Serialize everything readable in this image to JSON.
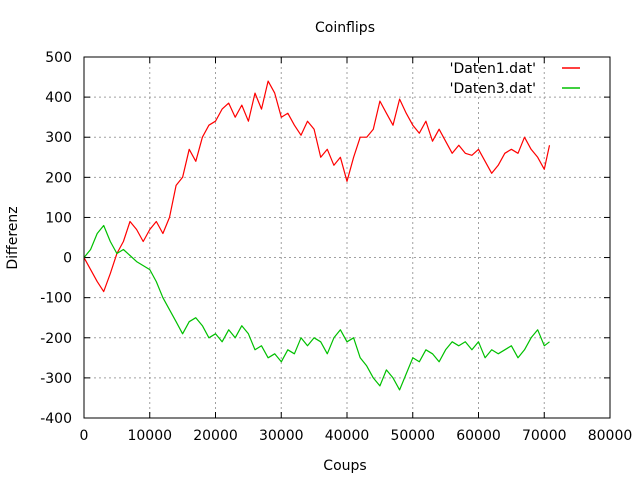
{
  "chart_data": {
    "type": "line",
    "title": "Coinflips",
    "xlabel": "Coups",
    "ylabel": "Differenz",
    "xlim": [
      0,
      80000
    ],
    "ylim": [
      -400,
      500
    ],
    "grid": true,
    "legend_position": "top-right",
    "x_ticks": [
      "0",
      "10000",
      "20000",
      "30000",
      "40000",
      "50000",
      "60000",
      "70000",
      "80000"
    ],
    "y_ticks": [
      "-400",
      "-300",
      "-200",
      "-100",
      "0",
      "100",
      "200",
      "300",
      "400",
      "500"
    ],
    "series": [
      {
        "name": "'Daten1.dat'",
        "color": "#ff0000",
        "x": [
          0,
          1000,
          2000,
          3000,
          4000,
          5000,
          6000,
          7000,
          8000,
          9000,
          10000,
          11000,
          12000,
          13000,
          14000,
          15000,
          16000,
          17000,
          18000,
          19000,
          20000,
          21000,
          22000,
          23000,
          24000,
          25000,
          26000,
          27000,
          28000,
          29000,
          30000,
          31000,
          32000,
          33000,
          34000,
          35000,
          36000,
          37000,
          38000,
          39000,
          40000,
          41000,
          42000,
          43000,
          44000,
          45000,
          46000,
          47000,
          48000,
          49000,
          50000,
          51000,
          52000,
          53000,
          54000,
          55000,
          56000,
          57000,
          58000,
          59000,
          60000,
          61000,
          62000,
          63000,
          64000,
          65000,
          66000,
          67000,
          68000,
          69000,
          70000,
          70800
        ],
        "y": [
          0,
          -30,
          -60,
          -85,
          -40,
          10,
          40,
          90,
          70,
          40,
          70,
          90,
          60,
          100,
          180,
          200,
          270,
          240,
          300,
          330,
          340,
          370,
          385,
          350,
          380,
          340,
          410,
          370,
          440,
          410,
          350,
          360,
          330,
          305,
          340,
          320,
          250,
          270,
          230,
          250,
          190,
          250,
          300,
          300,
          320,
          390,
          360,
          330,
          395,
          360,
          330,
          310,
          340,
          290,
          320,
          290,
          260,
          280,
          260,
          255,
          270,
          240,
          210,
          230,
          260,
          270,
          260,
          300,
          270,
          250,
          220,
          280
        ]
      },
      {
        "name": "'Daten3.dat'",
        "color": "#00c000",
        "x": [
          0,
          1000,
          2000,
          3000,
          4000,
          5000,
          6000,
          7000,
          8000,
          9000,
          10000,
          11000,
          12000,
          13000,
          14000,
          15000,
          16000,
          17000,
          18000,
          19000,
          20000,
          21000,
          22000,
          23000,
          24000,
          25000,
          26000,
          27000,
          28000,
          29000,
          30000,
          31000,
          32000,
          33000,
          34000,
          35000,
          36000,
          37000,
          38000,
          39000,
          40000,
          41000,
          42000,
          43000,
          44000,
          45000,
          46000,
          47000,
          48000,
          49000,
          50000,
          51000,
          52000,
          53000,
          54000,
          55000,
          56000,
          57000,
          58000,
          59000,
          60000,
          61000,
          62000,
          63000,
          64000,
          65000,
          66000,
          67000,
          68000,
          69000,
          70000,
          70800
        ],
        "y": [
          0,
          20,
          60,
          80,
          40,
          10,
          20,
          5,
          -10,
          -20,
          -30,
          -60,
          -100,
          -130,
          -160,
          -190,
          -160,
          -150,
          -170,
          -200,
          -190,
          -210,
          -180,
          -200,
          -170,
          -190,
          -230,
          -220,
          -250,
          -240,
          -260,
          -230,
          -240,
          -200,
          -220,
          -200,
          -210,
          -240,
          -200,
          -180,
          -210,
          -200,
          -250,
          -270,
          -300,
          -320,
          -280,
          -300,
          -330,
          -290,
          -250,
          -260,
          -230,
          -240,
          -260,
          -230,
          -210,
          -220,
          -210,
          -230,
          -210,
          -250,
          -230,
          -240,
          -230,
          -220,
          -250,
          -230,
          -200,
          -180,
          -220,
          -210
        ]
      }
    ]
  }
}
